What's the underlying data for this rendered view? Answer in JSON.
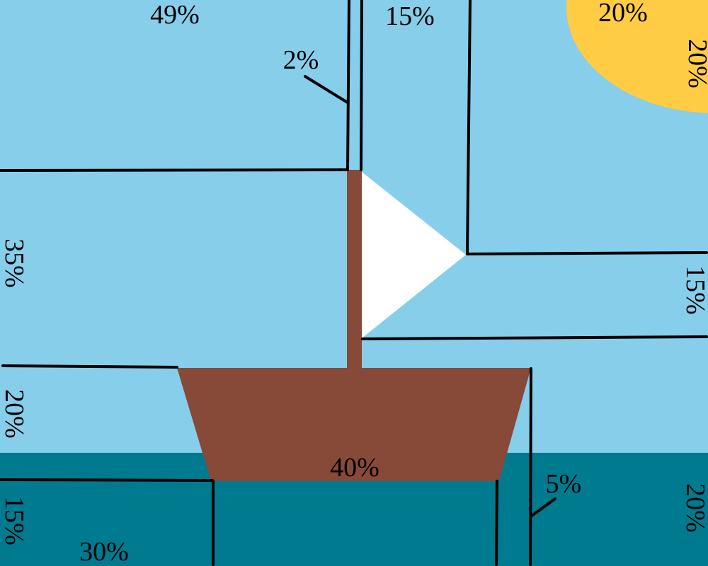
{
  "colors": {
    "sky": "#87CEEB",
    "sea": "#007A8F",
    "sun": "#FFCC44",
    "hull": "#874938",
    "mast": "#874938",
    "sail": "#FFFFFF",
    "line": "#000000"
  },
  "labels": {
    "top_left": "49%",
    "mast_pointer": "2%",
    "top_middle": "15%",
    "sun_top": "20%",
    "sun_side": "20%",
    "left_middle": "35%",
    "right_middle": "15%",
    "left_lower": "20%",
    "hull": "40%",
    "hull_pointer": "5%",
    "right_bottom": "20%",
    "left_bottom": "15%",
    "bottom_left": "30%"
  }
}
